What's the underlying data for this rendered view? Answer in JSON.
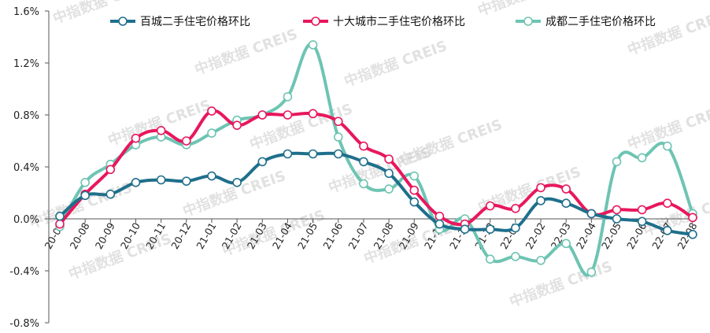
{
  "chart_data": {
    "type": "line",
    "title": "",
    "xlabel": "",
    "ylabel": "",
    "ylim": [
      -0.8,
      1.6
    ],
    "yticks": [
      "1.6%",
      "1.2%",
      "0.8%",
      "0.4%",
      "0.0%",
      "-0.4%",
      "-0.8%"
    ],
    "ytick_values": [
      1.6,
      1.2,
      0.8,
      0.4,
      0.0,
      -0.4,
      -0.8
    ],
    "grid": false,
    "legend_position": "top",
    "categories": [
      "20-07",
      "20-08",
      "20-09",
      "20-10",
      "20-11",
      "20-12",
      "21-01",
      "21-02",
      "21-03",
      "21-04",
      "21-05",
      "21-06",
      "21-07",
      "21-08",
      "21-09",
      "21-10",
      "21-11",
      "21-12",
      "22-01",
      "22-02",
      "22-03",
      "22-04",
      "22-05",
      "22-06",
      "22-07",
      "22-08"
    ],
    "series": [
      {
        "name": "百城二手住宅价格环比",
        "color": "#1f6f8b",
        "values": [
          0.02,
          0.18,
          0.19,
          0.28,
          0.3,
          0.29,
          0.33,
          0.28,
          0.44,
          0.5,
          0.5,
          0.5,
          0.44,
          0.35,
          0.13,
          -0.04,
          -0.08,
          -0.08,
          -0.07,
          0.14,
          0.12,
          0.04,
          0.0,
          -0.02,
          -0.09,
          -0.12
        ]
      },
      {
        "name": "十大城市二手住宅价格环比",
        "color": "#e8175d",
        "values": [
          -0.04,
          0.19,
          0.38,
          0.62,
          0.68,
          0.6,
          0.83,
          0.72,
          0.8,
          0.8,
          0.81,
          0.75,
          0.56,
          0.46,
          0.22,
          0.02,
          -0.04,
          0.1,
          0.08,
          0.24,
          0.23,
          0.04,
          0.07,
          0.07,
          0.12,
          0.01
        ]
      },
      {
        "name": "成都二手住宅价格环比",
        "color": "#6ec4b3",
        "values": [
          -0.06,
          0.28,
          0.42,
          0.57,
          0.63,
          0.57,
          0.66,
          0.76,
          0.8,
          0.94,
          1.34,
          0.63,
          0.27,
          0.23,
          0.33,
          -0.08,
          0.0,
          -0.31,
          -0.29,
          -0.32,
          -0.19,
          -0.41,
          0.44,
          0.47,
          0.56,
          0.04
        ]
      }
    ]
  },
  "watermark": {
    "text": "中指数据 CREIS"
  }
}
